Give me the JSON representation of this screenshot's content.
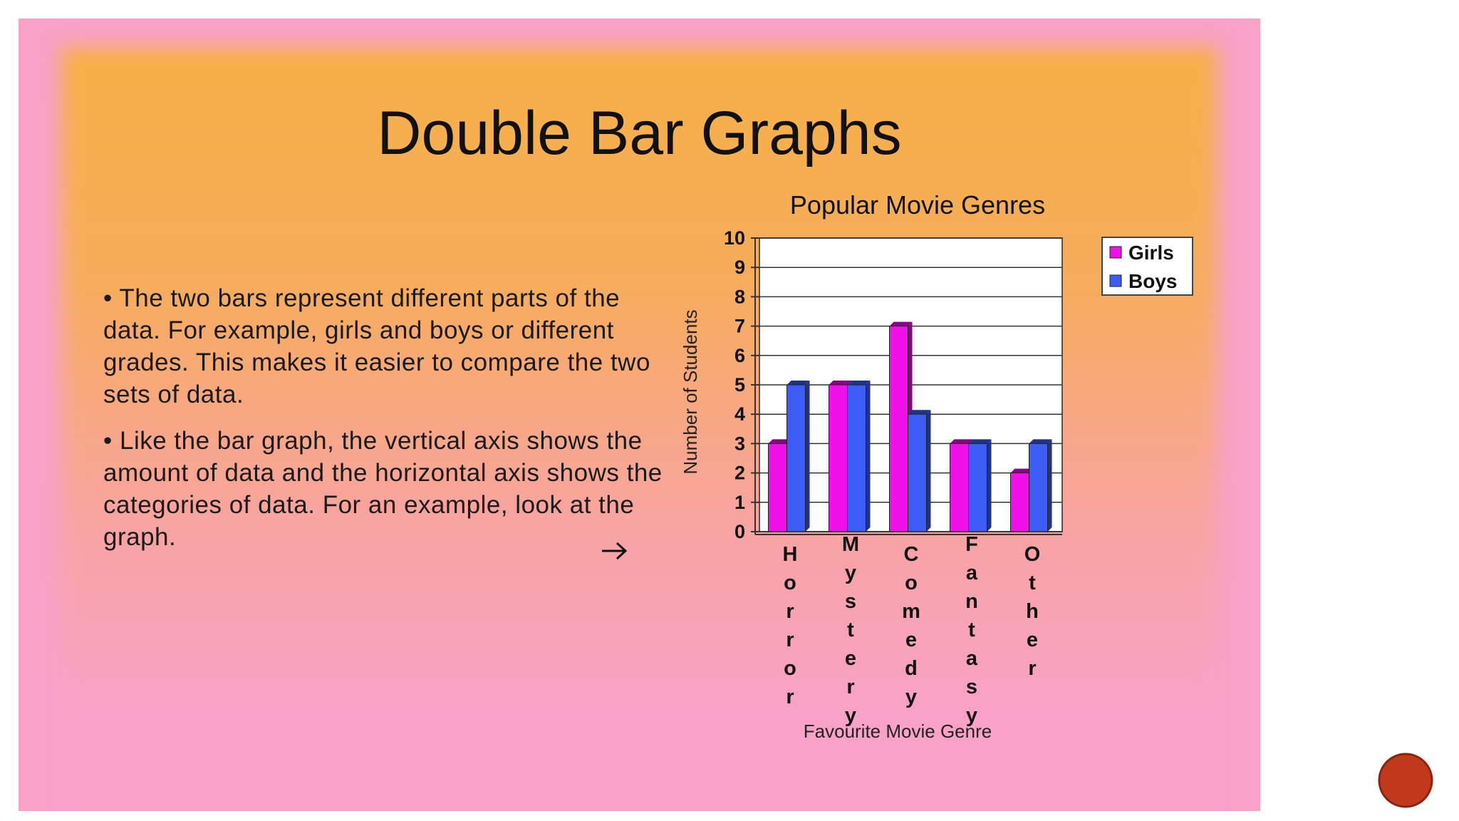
{
  "slide": {
    "title": "Double Bar Graphs",
    "bullets": [
      "• The two bars represent different parts of the data. For example, girls and boys or different grades. This makes it easier to compare the two sets of data.",
      "•  Like the bar graph, the vertical axis shows the amount of data and the horizontal axis shows the categories of data. For an example, look at the graph."
    ]
  },
  "chart_data": {
    "type": "bar",
    "title": "Popular Movie Genres",
    "x_label": "Favourite Movie Genre",
    "y_label": "Number of Students",
    "categories": [
      "Horror",
      "Mystery",
      "Comedy",
      "Fantasy",
      "Other"
    ],
    "series": [
      {
        "name": "Girls",
        "color": "#f010e8",
        "values": [
          3,
          5,
          7,
          3,
          2
        ]
      },
      {
        "name": "Boys",
        "color": "#3b5cf5",
        "values": [
          5,
          5,
          4,
          3,
          3
        ]
      }
    ],
    "ylim": [
      0,
      10
    ],
    "yticks": [
      0,
      1,
      2,
      3,
      4,
      5,
      6,
      7,
      8,
      9,
      10
    ],
    "grid": true,
    "legend": "right"
  }
}
